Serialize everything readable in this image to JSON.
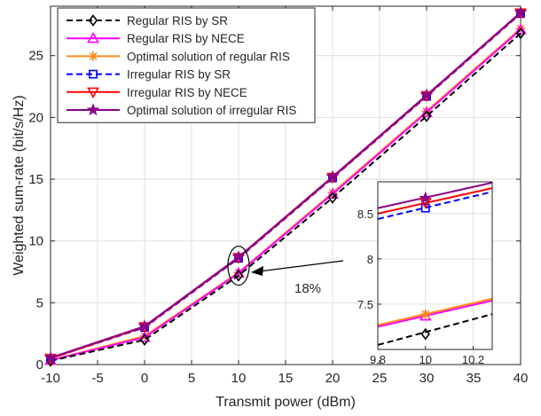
{
  "chart_data": {
    "type": "line",
    "xlabel": "Transmit power (dBm)",
    "ylabel": "Weighted sum-rate (bit/s/Hz)",
    "xlim": [
      -10,
      40
    ],
    "ylim": [
      0,
      29
    ],
    "xticks": [
      -10,
      -5,
      0,
      5,
      10,
      15,
      20,
      25,
      30,
      35,
      40
    ],
    "yticks": [
      0,
      5,
      10,
      15,
      20,
      25
    ],
    "grid": true,
    "legend_position": "top-left",
    "x": [
      -10,
      0,
      10,
      20,
      30,
      40
    ],
    "series": [
      {
        "name": "Regular RIS by SR",
        "color": "#000000",
        "dash": "dashed",
        "marker": "diamond",
        "values": [
          0.3,
          2.0,
          7.2,
          13.5,
          20.1,
          26.8
        ]
      },
      {
        "name": "Regular RIS by NECE",
        "color": "#ff00ff",
        "dash": "solid",
        "marker": "triangle-up",
        "values": [
          0.35,
          2.2,
          7.4,
          13.8,
          20.4,
          27.1
        ]
      },
      {
        "name": "Optimal solution of regular RIS",
        "color": "#ff8c1a",
        "dash": "solid",
        "marker": "asterisk",
        "values": [
          0.35,
          2.3,
          7.45,
          13.9,
          20.5,
          27.2
        ]
      },
      {
        "name": "Irregular RIS by SR",
        "color": "#0000ff",
        "dash": "dashed",
        "marker": "square",
        "values": [
          0.5,
          3.0,
          8.6,
          15.1,
          21.7,
          28.4
        ]
      },
      {
        "name": "Irregular RIS by NECE",
        "color": "#ff0000",
        "dash": "solid",
        "marker": "triangle-down",
        "values": [
          0.5,
          3.05,
          8.65,
          15.15,
          21.75,
          28.45
        ]
      },
      {
        "name": "Optimal solution of irregular RIS",
        "color": "#8b008b",
        "dash": "solid",
        "marker": "pentagram",
        "values": [
          0.55,
          3.1,
          8.7,
          15.2,
          21.8,
          28.5
        ]
      }
    ],
    "annotation": {
      "text": "18%"
    },
    "inset": {
      "xlim": [
        9.8,
        10.28
      ],
      "ylim": [
        7.0,
        8.85
      ],
      "xticks": [
        9.8,
        10,
        10.2
      ],
      "yticks": [
        7.5,
        8,
        8.5
      ],
      "lines": [
        {
          "series": 0,
          "y0": 7.05,
          "y1": 7.39
        },
        {
          "series": 1,
          "y0": 7.25,
          "y1": 7.54
        },
        {
          "series": 2,
          "y0": 7.27,
          "y1": 7.56
        },
        {
          "series": 3,
          "y0": 8.44,
          "y1": 8.74
        },
        {
          "series": 4,
          "y0": 8.5,
          "y1": 8.78
        },
        {
          "series": 5,
          "y0": 8.56,
          "y1": 8.84
        }
      ],
      "markers": [
        {
          "series": 0,
          "y": 7.17
        },
        {
          "series": 1,
          "y": 7.37
        },
        {
          "series": 2,
          "y": 7.39
        },
        {
          "series": 3,
          "y": 8.56
        },
        {
          "series": 4,
          "y": 8.62
        },
        {
          "series": 5,
          "y": 8.67
        }
      ]
    }
  }
}
